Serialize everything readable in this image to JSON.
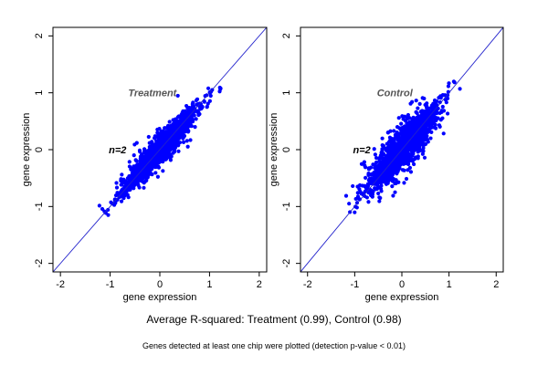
{
  "summary_text": "Average R-squared: Treatment (0.99), Control (0.98)",
  "footnote_text": "Genes detected at least one chip were plotted (detection p-value < 0.01)",
  "colors": {
    "points": "#0000ff",
    "identity_line": "#2222cc",
    "panel_text": "#555555",
    "axis": "#000000"
  },
  "chart_data": [
    {
      "type": "scatter",
      "panel_label": "Treatment",
      "sample_label": "n=2",
      "xlabel": "gene expression",
      "ylabel": "gene expression",
      "xlim": [
        -2.15,
        2.15
      ],
      "ylim": [
        -2.15,
        2.15
      ],
      "xticks": [
        -2,
        -1,
        0,
        1,
        2
      ],
      "yticks": [
        -2,
        -1,
        0,
        1,
        2
      ],
      "reference_line": "y = x",
      "grid": false,
      "point_cloud": {
        "x_range": [
          -1.1,
          1.15
        ],
        "spread": 0.1,
        "outliers": 10
      },
      "r_squared": 0.99
    },
    {
      "type": "scatter",
      "panel_label": "Control",
      "sample_label": "n=2",
      "xlabel": "gene expression",
      "ylabel": "gene expression",
      "xlim": [
        -2.15,
        2.15
      ],
      "ylim": [
        -2.15,
        2.15
      ],
      "xticks": [
        -2,
        -1,
        0,
        1,
        2
      ],
      "yticks": [
        -2,
        -1,
        0,
        1,
        2
      ],
      "reference_line": "y = x",
      "grid": false,
      "point_cloud": {
        "x_range": [
          -1.1,
          1.15
        ],
        "spread": 0.14,
        "outliers": 40
      },
      "r_squared": 0.98
    }
  ]
}
